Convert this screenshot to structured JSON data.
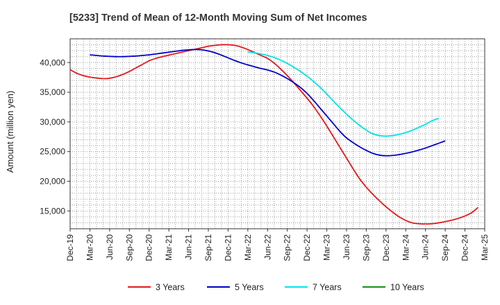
{
  "chart_data": {
    "type": "line",
    "title": "[5233]  Trend of Mean of 12-Month Moving Sum of Net Incomes",
    "xlabel": "",
    "ylabel": "Amount (million yen)",
    "ylim": [
      12000,
      44000
    ],
    "yticks": [
      15000,
      20000,
      25000,
      30000,
      35000,
      40000
    ],
    "ytick_labels": [
      "15,000",
      "20,000",
      "25,000",
      "30,000",
      "35,000",
      "40,000"
    ],
    "x_start": "Dec-19",
    "x_end": "Mar-25",
    "x_labels": [
      "Dec-19",
      "Mar-20",
      "Jun-20",
      "Sep-20",
      "Dec-20",
      "Mar-21",
      "Jun-21",
      "Sep-21",
      "Dec-21",
      "Mar-22",
      "Jun-22",
      "Sep-22",
      "Dec-22",
      "Mar-23",
      "Jun-23",
      "Sep-23",
      "Dec-23",
      "Mar-24",
      "Jun-24",
      "Sep-24",
      "Dec-24",
      "Mar-25"
    ],
    "grid": true,
    "legend_position": "bottom",
    "series": [
      {
        "name": "3 Years",
        "color": "#e31a1c",
        "start_month": 0,
        "values": [
          38800,
          38200,
          37800,
          37550,
          37400,
          37300,
          37350,
          37600,
          38000,
          38500,
          39100,
          39700,
          40300,
          40700,
          41000,
          41250,
          41500,
          41750,
          42000,
          42250,
          42500,
          42750,
          42900,
          43000,
          43000,
          42900,
          42600,
          42200,
          41700,
          41200,
          40700,
          39900,
          38900,
          37800,
          36600,
          35300,
          34000,
          32600,
          31000,
          29300,
          27500,
          25700,
          23900,
          22100,
          20400,
          19000,
          17800,
          16700,
          15700,
          14800,
          14000,
          13400,
          13000,
          12850,
          12800,
          12850,
          13000,
          13200,
          13450,
          13750,
          14150,
          14700,
          15600
        ]
      },
      {
        "name": "5 Years",
        "color": "#0000cc",
        "start_month": 3,
        "values": [
          41300,
          41200,
          41100,
          41050,
          41000,
          41000,
          41050,
          41100,
          41200,
          41300,
          41450,
          41600,
          41750,
          41900,
          42050,
          42150,
          42200,
          42150,
          41950,
          41650,
          41250,
          40800,
          40350,
          39950,
          39600,
          39300,
          39000,
          38750,
          38400,
          37900,
          37300,
          36600,
          35800,
          34800,
          33600,
          32300,
          31000,
          29700,
          28400,
          27300,
          26500,
          25800,
          25200,
          24700,
          24400,
          24300,
          24350,
          24500,
          24700,
          24950,
          25250,
          25600,
          26000,
          26400,
          26800
        ]
      },
      {
        "name": "7 Years",
        "color": "#00e5e5",
        "start_month": 27,
        "values": [
          41800,
          41650,
          41450,
          41200,
          40850,
          40400,
          39850,
          39200,
          38500,
          37700,
          36800,
          35800,
          34700,
          33500,
          32400,
          31300,
          30300,
          29400,
          28600,
          28000,
          27700,
          27600,
          27700,
          27900,
          28200,
          28600,
          29100,
          29600,
          30200,
          30600
        ]
      },
      {
        "name": "10 Years",
        "color": "#1a8c1a",
        "start_month": 0,
        "values": []
      }
    ]
  }
}
